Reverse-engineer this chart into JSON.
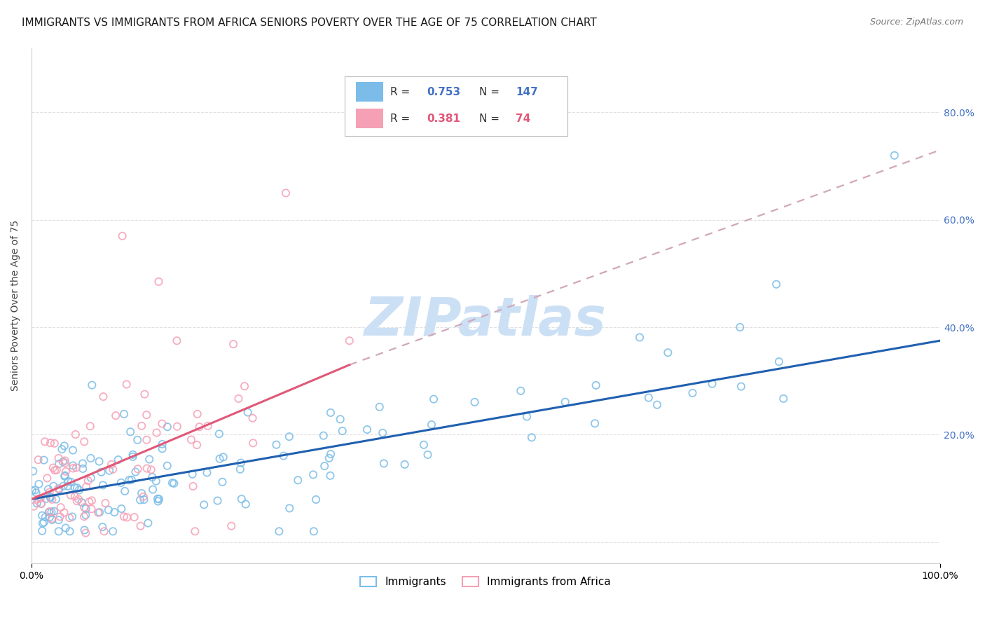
{
  "title": "IMMIGRANTS VS IMMIGRANTS FROM AFRICA SENIORS POVERTY OVER THE AGE OF 75 CORRELATION CHART",
  "source": "Source: ZipAtlas.com",
  "ylabel": "Seniors Poverty Over the Age of 75",
  "xlim": [
    0,
    1.0
  ],
  "ylim": [
    -0.04,
    0.92
  ],
  "ytick_vals": [
    0.0,
    0.2,
    0.4,
    0.6,
    0.8
  ],
  "ytick_labels_right": [
    "",
    "20.0%",
    "40.0%",
    "60.0%",
    "80.0%"
  ],
  "xtick_vals": [
    0.0,
    1.0
  ],
  "xtick_labels": [
    "0.0%",
    "100.0%"
  ],
  "series1_label": "Immigrants",
  "series1_color": "#7bbde8",
  "series1_R": 0.753,
  "series1_N": 147,
  "series2_label": "Immigrants from Africa",
  "series2_color": "#f5a0b5",
  "series2_R": 0.381,
  "series2_N": 74,
  "line1_color": "#2060b0",
  "line2_color": "#e05878",
  "line2_dash_color": "#d0a8b8",
  "line1_x0": 0.0,
  "line1_y0": 0.08,
  "line1_x1": 1.0,
  "line1_y1": 0.375,
  "line2_x0": 0.0,
  "line2_y0": 0.08,
  "line2_x1": 0.35,
  "line2_y1": 0.33,
  "line2_dash_x0": 0.35,
  "line2_dash_y0": 0.33,
  "line2_dash_x1": 1.0,
  "line2_dash_y1": 0.73,
  "watermark": "ZIPatlas",
  "watermark_color": "#cce0f5",
  "background_color": "#ffffff",
  "grid_color": "#e0e0e0",
  "title_fontsize": 11,
  "axis_label_fontsize": 10,
  "tick_fontsize": 10,
  "legend_fontsize": 11,
  "right_tick_color": "#4472c4"
}
